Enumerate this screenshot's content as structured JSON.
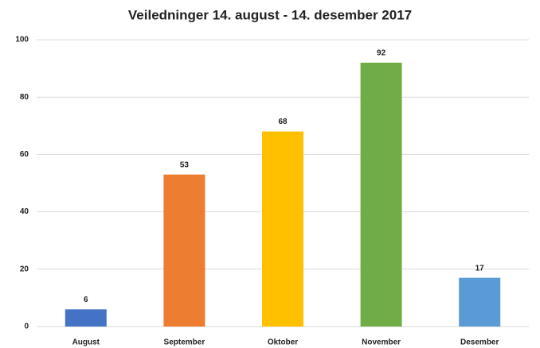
{
  "chart_data": {
    "type": "bar",
    "title": "Veiledninger 14. august - 14. desember 2017",
    "categories": [
      "August",
      "September",
      "Oktober",
      "November",
      "Desember"
    ],
    "values": [
      6,
      53,
      68,
      92,
      17
    ],
    "colors": [
      "#4472c4",
      "#ed7d31",
      "#ffc000",
      "#70ad47",
      "#5b9bd5"
    ],
    "ylim": [
      0,
      100
    ],
    "yticks": [
      0,
      20,
      40,
      60,
      80,
      100
    ],
    "grid": true
  }
}
